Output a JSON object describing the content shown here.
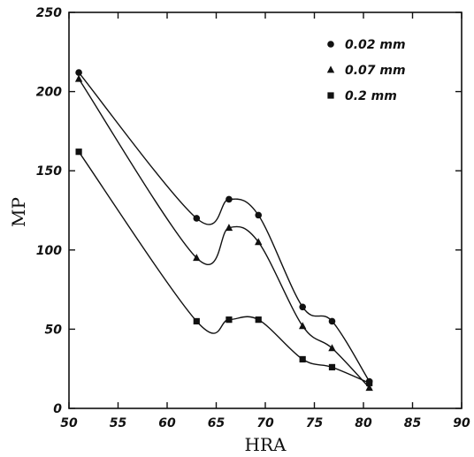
{
  "chart_data": {
    "type": "line",
    "xlabel": "HRA",
    "ylabel": "MP",
    "xlim": [
      50,
      90
    ],
    "ylim": [
      0,
      250
    ],
    "x_ticks": [
      50,
      55,
      60,
      65,
      70,
      75,
      80,
      85,
      90
    ],
    "y_ticks": [
      0,
      50,
      100,
      150,
      200,
      250
    ],
    "x_tick_labels": [
      "50",
      "55",
      "60",
      "65",
      "70",
      "75",
      "80",
      "85",
      "90"
    ],
    "y_tick_labels": [
      "0",
      "50",
      "100",
      "150",
      "200",
      "250"
    ],
    "grid": false,
    "legend_position": "top-right",
    "series": [
      {
        "name": "0.02 mm",
        "marker": "circle",
        "color": "#111111",
        "x": [
          51,
          63,
          66.3,
          69.3,
          73.8,
          76.8,
          80.6
        ],
        "y": [
          212,
          120,
          132,
          122,
          64,
          55,
          17
        ]
      },
      {
        "name": "0.07 mm",
        "marker": "triangle",
        "color": "#111111",
        "x": [
          51,
          63,
          66.3,
          69.3,
          73.8,
          76.8,
          80.6
        ],
        "y": [
          208,
          95,
          114,
          105,
          52,
          38,
          13
        ]
      },
      {
        "name": "0.2 mm",
        "marker": "square",
        "color": "#111111",
        "x": [
          51,
          63,
          66.3,
          69.3,
          73.8,
          76.8,
          80.6
        ],
        "y": [
          162,
          55,
          56,
          56,
          31,
          26,
          16
        ]
      }
    ]
  }
}
